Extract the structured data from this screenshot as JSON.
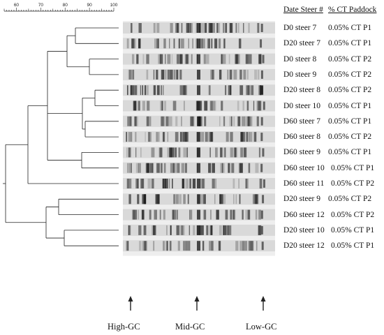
{
  "scale": {
    "ticks": [
      "60",
      "70",
      "80",
      "90",
      "100"
    ],
    "min": 55,
    "max": 100
  },
  "header": {
    "left": "Date Steer #",
    "right": "% CT Paddock"
  },
  "rows": [
    {
      "sample": "D0 steer 7",
      "treatment": "0.05% CT P1"
    },
    {
      "sample": "D20 steer 7",
      "treatment": "0.05% CT P1"
    },
    {
      "sample": "D0 steer 8",
      "treatment": "0.05% CT P2"
    },
    {
      "sample": "D0 steer 9",
      "treatment": "0.05% CT P2"
    },
    {
      "sample": "D20 steer 8",
      "treatment": "0.05% CT P2"
    },
    {
      "sample": "D0 steer 10",
      "treatment": "0.05% CT P1"
    },
    {
      "sample": "D60 steer 7",
      "treatment": "0.05% CT P1"
    },
    {
      "sample": "D60 steer 8",
      "treatment": "0.05% CT P2"
    },
    {
      "sample": "D60 steer 9",
      "treatment": "0.05% CT P1"
    },
    {
      "sample": "D60 steer 10",
      "treatment": "0.05% CT P1"
    },
    {
      "sample": "D60 steer 11",
      "treatment": "0.05% CT P2"
    },
    {
      "sample": "D20 steer 9",
      "treatment": "0.05% CT P2"
    },
    {
      "sample": "D60 steer 12",
      "treatment": "0.05% CT P2"
    },
    {
      "sample": "D20 steer 10",
      "treatment": "0.05% CT P1"
    },
    {
      "sample": "D20 steer 12",
      "treatment": "0.05% CT P1"
    }
  ],
  "markers": [
    {
      "label": "High-GC"
    },
    {
      "label": "Mid-GC"
    },
    {
      "label": "Low-GC"
    }
  ],
  "colors": {
    "line": "#222222",
    "gel_bg": "#eeeeee",
    "band": "#111111"
  }
}
